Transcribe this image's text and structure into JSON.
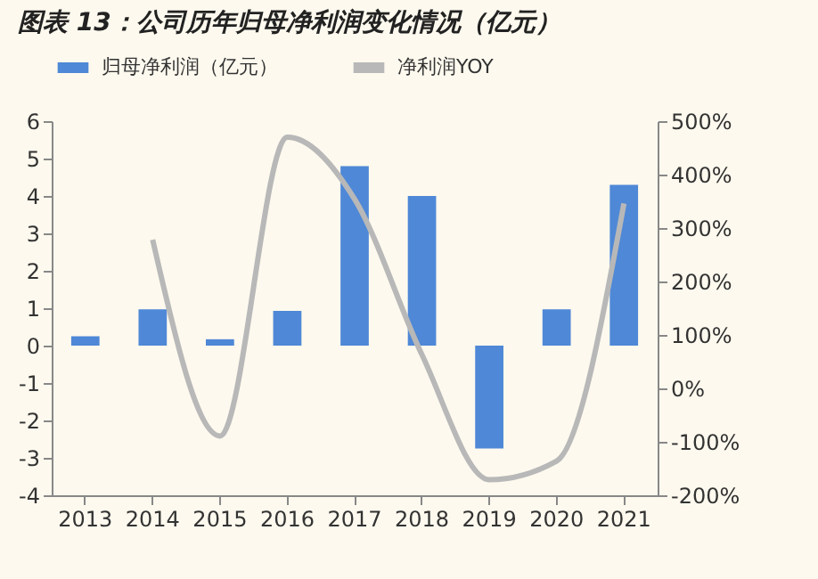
{
  "chart_data": {
    "type": "bar",
    "title": "图表 13：公司历年归母净利润变化情况（亿元）",
    "categories": [
      "2013",
      "2014",
      "2015",
      "2016",
      "2017",
      "2018",
      "2019",
      "2020",
      "2021"
    ],
    "series": [
      {
        "name": "归母净利润（亿元）",
        "color": "#4f88d6",
        "values": [
          0.25,
          0.97,
          0.17,
          0.93,
          4.8,
          4.0,
          -2.75,
          0.97,
          4.3
        ]
      },
      {
        "name": "净利润YOY",
        "type": "line",
        "axis": "y2",
        "color": "#b8b8b8",
        "values": [
          null,
          278,
          -89,
          470,
          354,
          63,
          -171,
          -136,
          346
        ]
      }
    ],
    "ylim": [
      -4,
      6
    ],
    "yticks": [
      -4,
      -3,
      -2,
      -1,
      0,
      1,
      2,
      3,
      4,
      5,
      6
    ],
    "y2lim": [
      -200,
      500
    ],
    "y2ticks": [
      {
        "value": -200,
        "label": "-200%"
      },
      {
        "value": -100,
        "label": "-100%"
      },
      {
        "value": 0,
        "label": "0%"
      },
      {
        "value": 100,
        "label": "100%"
      },
      {
        "value": 200,
        "label": "200%"
      },
      {
        "value": 300,
        "label": "300%"
      },
      {
        "value": 400,
        "label": "400%"
      },
      {
        "value": 500,
        "label": "500%"
      }
    ],
    "legend": "top",
    "grid": false
  }
}
